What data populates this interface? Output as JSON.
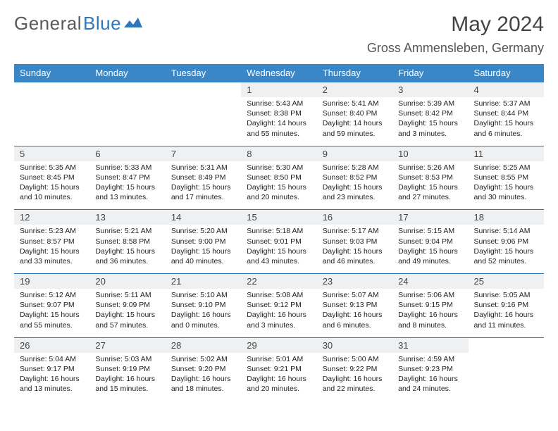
{
  "logo": {
    "left": "General",
    "right": "Blue",
    "accent_color": "#2f77bb"
  },
  "month_title": "May 2024",
  "location": "Gross Ammensleben, Germany",
  "day_headers": [
    "Sunday",
    "Monday",
    "Tuesday",
    "Wednesday",
    "Thursday",
    "Friday",
    "Saturday"
  ],
  "colors": {
    "header_bg": "#3a87c7",
    "date_bg": "#eef0f2",
    "rule": "#2f77bb",
    "text": "#222222"
  },
  "weeks": [
    {
      "dates": [
        "",
        "",
        "",
        "1",
        "2",
        "3",
        "4"
      ],
      "cells": [
        null,
        null,
        null,
        {
          "sunrise": "Sunrise: 5:43 AM",
          "sunset": "Sunset: 8:38 PM",
          "daylight": "Daylight: 14 hours and 55 minutes."
        },
        {
          "sunrise": "Sunrise: 5:41 AM",
          "sunset": "Sunset: 8:40 PM",
          "daylight": "Daylight: 14 hours and 59 minutes."
        },
        {
          "sunrise": "Sunrise: 5:39 AM",
          "sunset": "Sunset: 8:42 PM",
          "daylight": "Daylight: 15 hours and 3 minutes."
        },
        {
          "sunrise": "Sunrise: 5:37 AM",
          "sunset": "Sunset: 8:44 PM",
          "daylight": "Daylight: 15 hours and 6 minutes."
        }
      ]
    },
    {
      "dates": [
        "5",
        "6",
        "7",
        "8",
        "9",
        "10",
        "11"
      ],
      "cells": [
        {
          "sunrise": "Sunrise: 5:35 AM",
          "sunset": "Sunset: 8:45 PM",
          "daylight": "Daylight: 15 hours and 10 minutes."
        },
        {
          "sunrise": "Sunrise: 5:33 AM",
          "sunset": "Sunset: 8:47 PM",
          "daylight": "Daylight: 15 hours and 13 minutes."
        },
        {
          "sunrise": "Sunrise: 5:31 AM",
          "sunset": "Sunset: 8:49 PM",
          "daylight": "Daylight: 15 hours and 17 minutes."
        },
        {
          "sunrise": "Sunrise: 5:30 AM",
          "sunset": "Sunset: 8:50 PM",
          "daylight": "Daylight: 15 hours and 20 minutes."
        },
        {
          "sunrise": "Sunrise: 5:28 AM",
          "sunset": "Sunset: 8:52 PM",
          "daylight": "Daylight: 15 hours and 23 minutes."
        },
        {
          "sunrise": "Sunrise: 5:26 AM",
          "sunset": "Sunset: 8:53 PM",
          "daylight": "Daylight: 15 hours and 27 minutes."
        },
        {
          "sunrise": "Sunrise: 5:25 AM",
          "sunset": "Sunset: 8:55 PM",
          "daylight": "Daylight: 15 hours and 30 minutes."
        }
      ]
    },
    {
      "dates": [
        "12",
        "13",
        "14",
        "15",
        "16",
        "17",
        "18"
      ],
      "cells": [
        {
          "sunrise": "Sunrise: 5:23 AM",
          "sunset": "Sunset: 8:57 PM",
          "daylight": "Daylight: 15 hours and 33 minutes."
        },
        {
          "sunrise": "Sunrise: 5:21 AM",
          "sunset": "Sunset: 8:58 PM",
          "daylight": "Daylight: 15 hours and 36 minutes."
        },
        {
          "sunrise": "Sunrise: 5:20 AM",
          "sunset": "Sunset: 9:00 PM",
          "daylight": "Daylight: 15 hours and 40 minutes."
        },
        {
          "sunrise": "Sunrise: 5:18 AM",
          "sunset": "Sunset: 9:01 PM",
          "daylight": "Daylight: 15 hours and 43 minutes."
        },
        {
          "sunrise": "Sunrise: 5:17 AM",
          "sunset": "Sunset: 9:03 PM",
          "daylight": "Daylight: 15 hours and 46 minutes."
        },
        {
          "sunrise": "Sunrise: 5:15 AM",
          "sunset": "Sunset: 9:04 PM",
          "daylight": "Daylight: 15 hours and 49 minutes."
        },
        {
          "sunrise": "Sunrise: 5:14 AM",
          "sunset": "Sunset: 9:06 PM",
          "daylight": "Daylight: 15 hours and 52 minutes."
        }
      ]
    },
    {
      "dates": [
        "19",
        "20",
        "21",
        "22",
        "23",
        "24",
        "25"
      ],
      "cells": [
        {
          "sunrise": "Sunrise: 5:12 AM",
          "sunset": "Sunset: 9:07 PM",
          "daylight": "Daylight: 15 hours and 55 minutes."
        },
        {
          "sunrise": "Sunrise: 5:11 AM",
          "sunset": "Sunset: 9:09 PM",
          "daylight": "Daylight: 15 hours and 57 minutes."
        },
        {
          "sunrise": "Sunrise: 5:10 AM",
          "sunset": "Sunset: 9:10 PM",
          "daylight": "Daylight: 16 hours and 0 minutes."
        },
        {
          "sunrise": "Sunrise: 5:08 AM",
          "sunset": "Sunset: 9:12 PM",
          "daylight": "Daylight: 16 hours and 3 minutes."
        },
        {
          "sunrise": "Sunrise: 5:07 AM",
          "sunset": "Sunset: 9:13 PM",
          "daylight": "Daylight: 16 hours and 6 minutes."
        },
        {
          "sunrise": "Sunrise: 5:06 AM",
          "sunset": "Sunset: 9:15 PM",
          "daylight": "Daylight: 16 hours and 8 minutes."
        },
        {
          "sunrise": "Sunrise: 5:05 AM",
          "sunset": "Sunset: 9:16 PM",
          "daylight": "Daylight: 16 hours and 11 minutes."
        }
      ]
    },
    {
      "dates": [
        "26",
        "27",
        "28",
        "29",
        "30",
        "31",
        ""
      ],
      "cells": [
        {
          "sunrise": "Sunrise: 5:04 AM",
          "sunset": "Sunset: 9:17 PM",
          "daylight": "Daylight: 16 hours and 13 minutes."
        },
        {
          "sunrise": "Sunrise: 5:03 AM",
          "sunset": "Sunset: 9:19 PM",
          "daylight": "Daylight: 16 hours and 15 minutes."
        },
        {
          "sunrise": "Sunrise: 5:02 AM",
          "sunset": "Sunset: 9:20 PM",
          "daylight": "Daylight: 16 hours and 18 minutes."
        },
        {
          "sunrise": "Sunrise: 5:01 AM",
          "sunset": "Sunset: 9:21 PM",
          "daylight": "Daylight: 16 hours and 20 minutes."
        },
        {
          "sunrise": "Sunrise: 5:00 AM",
          "sunset": "Sunset: 9:22 PM",
          "daylight": "Daylight: 16 hours and 22 minutes."
        },
        {
          "sunrise": "Sunrise: 4:59 AM",
          "sunset": "Sunset: 9:23 PM",
          "daylight": "Daylight: 16 hours and 24 minutes."
        },
        null
      ]
    }
  ]
}
